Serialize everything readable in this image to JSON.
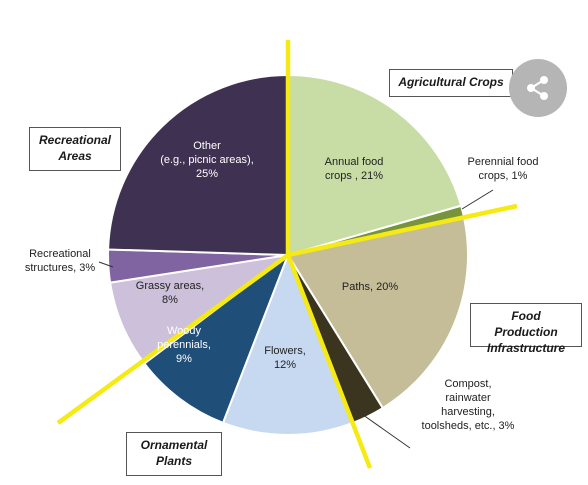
{
  "chart_data": {
    "type": "pie",
    "slices": [
      {
        "label_lines": [
          "Annual food",
          "crops , 21%"
        ],
        "value": 21,
        "color": "#c8dca5",
        "label_color": "#222222"
      },
      {
        "label_lines": [
          "Perennial food",
          "crops, 1%"
        ],
        "value": 1,
        "color": "#77933c",
        "label_color": "#222222"
      },
      {
        "label_lines": [
          "Paths, 20%"
        ],
        "value": 20,
        "color": "#c4bd97",
        "label_color": "#222222"
      },
      {
        "label_lines": [
          "Compost,",
          "rainwater",
          "harvesting,",
          "toolsheds, etc., 3%"
        ],
        "value": 3,
        "color": "#3b3520",
        "label_color": "#222222"
      },
      {
        "label_lines": [
          "Flowers,",
          "12%"
        ],
        "value": 12,
        "color": "#c6d9f1",
        "label_color": "#222222"
      },
      {
        "label_lines": [
          "Woody",
          "perennials,",
          "9%"
        ],
        "value": 9,
        "color": "#1f4e79",
        "label_color": "#ffffff"
      },
      {
        "label_lines": [
          "Grassy areas,",
          "8%"
        ],
        "value": 8,
        "color": "#ccc0da",
        "label_color": "#222222"
      },
      {
        "label_lines": [
          "Recreational",
          "structures, 3%"
        ],
        "value": 3,
        "color": "#8064a2",
        "label_color": "#222222"
      },
      {
        "label_lines": [
          "Other",
          "(e.g., picnic areas),",
          "25%"
        ],
        "value": 25,
        "color": "#3f3151",
        "label_color": "#ffffff"
      }
    ],
    "groups": [
      {
        "label_lines": [
          "Agricultural Crops"
        ]
      },
      {
        "label_lines": [
          "Food Production",
          "Infrastructure"
        ]
      },
      {
        "label_lines": [
          "Ornamental",
          "Plants"
        ]
      },
      {
        "label_lines": [
          "Recreational",
          "Areas"
        ]
      }
    ],
    "divider_color": "#f5ea14"
  },
  "share_icon": "share-icon"
}
